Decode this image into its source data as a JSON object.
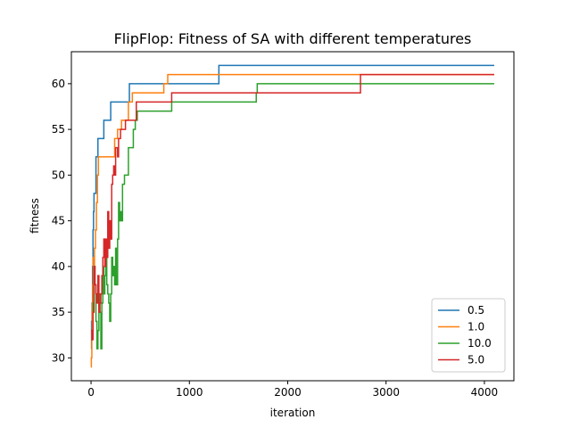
{
  "chart_data": {
    "type": "line",
    "title": "FlipFlop: Fitness of SA with different temperatures",
    "xlabel": "iteration",
    "ylabel": "fitness",
    "xlim": [
      -200,
      4300
    ],
    "ylim": [
      27.5,
      63.5
    ],
    "xticks": [
      0,
      1000,
      2000,
      3000,
      4000
    ],
    "yticks": [
      30,
      35,
      40,
      45,
      50,
      55,
      60
    ],
    "grid": false,
    "legend_position": "lower-right",
    "series": [
      {
        "name": "0.5",
        "color": "#1f77b4",
        "step_points": [
          [
            0,
            31
          ],
          [
            5,
            34
          ],
          [
            10,
            36
          ],
          [
            15,
            40
          ],
          [
            20,
            44
          ],
          [
            25,
            46
          ],
          [
            30,
            48
          ],
          [
            50,
            52
          ],
          [
            70,
            54
          ],
          [
            130,
            56
          ],
          [
            200,
            58
          ],
          [
            390,
            60
          ],
          [
            1300,
            62
          ],
          [
            4100,
            62
          ]
        ]
      },
      {
        "name": "1.0",
        "color": "#ff7f0e",
        "step_points": [
          [
            0,
            29
          ],
          [
            3,
            30
          ],
          [
            8,
            33
          ],
          [
            12,
            36
          ],
          [
            18,
            38
          ],
          [
            22,
            41
          ],
          [
            28,
            40
          ],
          [
            35,
            42
          ],
          [
            45,
            44
          ],
          [
            55,
            47
          ],
          [
            65,
            50
          ],
          [
            75,
            52
          ],
          [
            230,
            52
          ],
          [
            240,
            54
          ],
          [
            270,
            55
          ],
          [
            310,
            56
          ],
          [
            360,
            56
          ],
          [
            380,
            58
          ],
          [
            420,
            59
          ],
          [
            700,
            59
          ],
          [
            740,
            60
          ],
          [
            780,
            61
          ],
          [
            4100,
            61
          ]
        ]
      },
      {
        "name": "10.0",
        "color": "#2ca02c",
        "step_points": [
          [
            0,
            32
          ],
          [
            20,
            36
          ],
          [
            30,
            40
          ],
          [
            40,
            38
          ],
          [
            50,
            34
          ],
          [
            60,
            31
          ],
          [
            70,
            33
          ],
          [
            80,
            37
          ],
          [
            90,
            35
          ],
          [
            100,
            31
          ],
          [
            110,
            36
          ],
          [
            120,
            40
          ],
          [
            130,
            37
          ],
          [
            140,
            39
          ],
          [
            150,
            42
          ],
          [
            160,
            38
          ],
          [
            170,
            37
          ],
          [
            180,
            36
          ],
          [
            190,
            34
          ],
          [
            200,
            37
          ],
          [
            210,
            41
          ],
          [
            220,
            39
          ],
          [
            230,
            40
          ],
          [
            240,
            38
          ],
          [
            250,
            42
          ],
          [
            260,
            38
          ],
          [
            270,
            43
          ],
          [
            280,
            47
          ],
          [
            290,
            45
          ],
          [
            300,
            46
          ],
          [
            310,
            45
          ],
          [
            320,
            49
          ],
          [
            340,
            50
          ],
          [
            380,
            53
          ],
          [
            420,
            53
          ],
          [
            430,
            55
          ],
          [
            450,
            56
          ],
          [
            470,
            57
          ],
          [
            820,
            58
          ],
          [
            1680,
            59
          ],
          [
            1690,
            60
          ],
          [
            4100,
            60
          ]
        ]
      },
      {
        "name": "5.0",
        "color": "#d62728",
        "step_points": [
          [
            0,
            33
          ],
          [
            10,
            32
          ],
          [
            20,
            35
          ],
          [
            30,
            40
          ],
          [
            40,
            38
          ],
          [
            50,
            37
          ],
          [
            60,
            36
          ],
          [
            70,
            39
          ],
          [
            80,
            35
          ],
          [
            90,
            36
          ],
          [
            100,
            37
          ],
          [
            110,
            39
          ],
          [
            120,
            41
          ],
          [
            130,
            43
          ],
          [
            140,
            40
          ],
          [
            150,
            43
          ],
          [
            160,
            41
          ],
          [
            170,
            46
          ],
          [
            180,
            42
          ],
          [
            190,
            45
          ],
          [
            200,
            43
          ],
          [
            210,
            49
          ],
          [
            220,
            50
          ],
          [
            230,
            51
          ],
          [
            240,
            50
          ],
          [
            250,
            53
          ],
          [
            270,
            52
          ],
          [
            280,
            54
          ],
          [
            300,
            55
          ],
          [
            320,
            55
          ],
          [
            350,
            56
          ],
          [
            460,
            58
          ],
          [
            820,
            59
          ],
          [
            2740,
            61
          ],
          [
            4100,
            61
          ]
        ]
      }
    ]
  }
}
